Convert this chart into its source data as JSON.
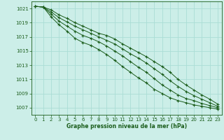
{
  "background_color": "#cceee8",
  "grid_color": "#aaddd5",
  "line_color": "#1a5c1a",
  "xlabel": "Graphe pression niveau de la mer (hPa)",
  "ylim": [
    1006.0,
    1022.0
  ],
  "xlim": [
    -0.5,
    23.5
  ],
  "yticks": [
    1007,
    1009,
    1011,
    1013,
    1015,
    1017,
    1019,
    1021
  ],
  "xticks": [
    0,
    1,
    2,
    3,
    4,
    5,
    6,
    7,
    8,
    9,
    10,
    11,
    12,
    13,
    14,
    15,
    16,
    17,
    18,
    19,
    20,
    21,
    22,
    23
  ],
  "series": [
    [
      1021.3,
      1021.2,
      1020.8,
      1020.1,
      1019.6,
      1019.0,
      1018.5,
      1018.0,
      1017.5,
      1017.2,
      1016.7,
      1016.0,
      1015.4,
      1014.8,
      1014.2,
      1013.5,
      1012.8,
      1012.0,
      1011.0,
      1010.2,
      1009.5,
      1008.8,
      1008.2,
      1007.5
    ],
    [
      1021.3,
      1021.2,
      1020.5,
      1019.7,
      1019.1,
      1018.5,
      1018.0,
      1017.5,
      1017.0,
      1016.5,
      1016.0,
      1015.3,
      1014.6,
      1014.0,
      1013.3,
      1012.5,
      1011.7,
      1010.8,
      1010.0,
      1009.3,
      1008.7,
      1008.2,
      1007.7,
      1007.2
    ],
    [
      1021.3,
      1021.2,
      1020.2,
      1019.2,
      1018.5,
      1017.8,
      1017.2,
      1016.8,
      1016.3,
      1015.7,
      1015.0,
      1014.3,
      1013.5,
      1012.7,
      1012.0,
      1011.1,
      1010.2,
      1009.5,
      1008.8,
      1008.3,
      1008.0,
      1007.6,
      1007.3,
      1007.0
    ],
    [
      1021.3,
      1021.2,
      1019.8,
      1018.7,
      1017.8,
      1016.8,
      1016.2,
      1015.8,
      1015.2,
      1014.5,
      1013.7,
      1012.8,
      1012.0,
      1011.2,
      1010.5,
      1009.6,
      1009.0,
      1008.4,
      1008.0,
      1007.7,
      1007.4,
      1007.2,
      1007.0,
      1006.8
    ]
  ]
}
